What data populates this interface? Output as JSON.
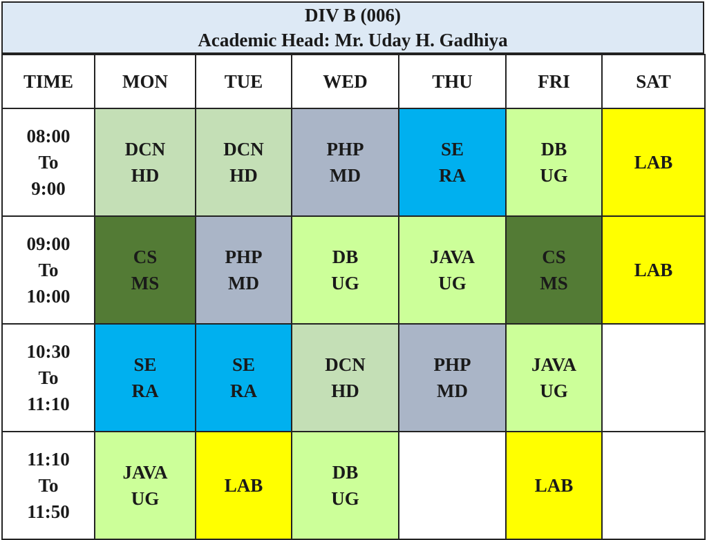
{
  "title": {
    "line1": "DIV B (006)",
    "line2": "Academic Head: Mr. Uday H. Gadhiya"
  },
  "headers": [
    "TIME",
    "MON",
    "TUE",
    "WED",
    "THU",
    "FRI",
    "SAT"
  ],
  "colors": {
    "dcn": "#c4dfb6",
    "php": "#aab5c7",
    "se": "#00b0ef",
    "db": "#ccff99",
    "lab": "#ffff00",
    "cs": "#537b35",
    "empty": "#ffffff"
  },
  "rows": [
    {
      "time": [
        "08:00",
        "To",
        "9:00"
      ],
      "cells": [
        {
          "lines": [
            "DCN",
            "HD"
          ],
          "color": "#c4dfb6"
        },
        {
          "lines": [
            "DCN",
            "HD"
          ],
          "color": "#c4dfb6"
        },
        {
          "lines": [
            "PHP",
            "MD"
          ],
          "color": "#aab5c7"
        },
        {
          "lines": [
            "SE",
            "RA"
          ],
          "color": "#00b0ef"
        },
        {
          "lines": [
            "DB",
            "UG"
          ],
          "color": "#ccff99"
        },
        {
          "lines": [
            "LAB"
          ],
          "color": "#ffff00"
        }
      ]
    },
    {
      "time": [
        "09:00",
        "To",
        "10:00"
      ],
      "cells": [
        {
          "lines": [
            "CS",
            "MS"
          ],
          "color": "#537b35"
        },
        {
          "lines": [
            "PHP",
            "MD"
          ],
          "color": "#aab5c7"
        },
        {
          "lines": [
            "DB",
            "UG"
          ],
          "color": "#ccff99"
        },
        {
          "lines": [
            "JAVA",
            "UG"
          ],
          "color": "#ccff99"
        },
        {
          "lines": [
            "CS",
            "MS"
          ],
          "color": "#537b35"
        },
        {
          "lines": [
            "LAB"
          ],
          "color": "#ffff00"
        }
      ]
    },
    {
      "time": [
        "10:30",
        "To",
        "11:10"
      ],
      "cells": [
        {
          "lines": [
            "SE",
            "RA"
          ],
          "color": "#00b0ef"
        },
        {
          "lines": [
            "SE",
            "RA"
          ],
          "color": "#00b0ef"
        },
        {
          "lines": [
            "DCN",
            "HD"
          ],
          "color": "#c4dfb6"
        },
        {
          "lines": [
            "PHP",
            "MD"
          ],
          "color": "#aab5c7"
        },
        {
          "lines": [
            "JAVA",
            "UG"
          ],
          "color": "#ccff99"
        },
        {
          "lines": [],
          "color": "#ffffff"
        }
      ]
    },
    {
      "time": [
        "11:10",
        "To",
        "11:50"
      ],
      "cells": [
        {
          "lines": [
            "JAVA",
            "UG"
          ],
          "color": "#ccff99"
        },
        {
          "lines": [
            "LAB"
          ],
          "color": "#ffff00"
        },
        {
          "lines": [
            "DB",
            "UG"
          ],
          "color": "#ccff99"
        },
        {
          "lines": [],
          "color": "#ffffff"
        },
        {
          "lines": [
            "LAB"
          ],
          "color": "#ffff00"
        },
        {
          "lines": [],
          "color": "#ffffff"
        }
      ]
    }
  ]
}
